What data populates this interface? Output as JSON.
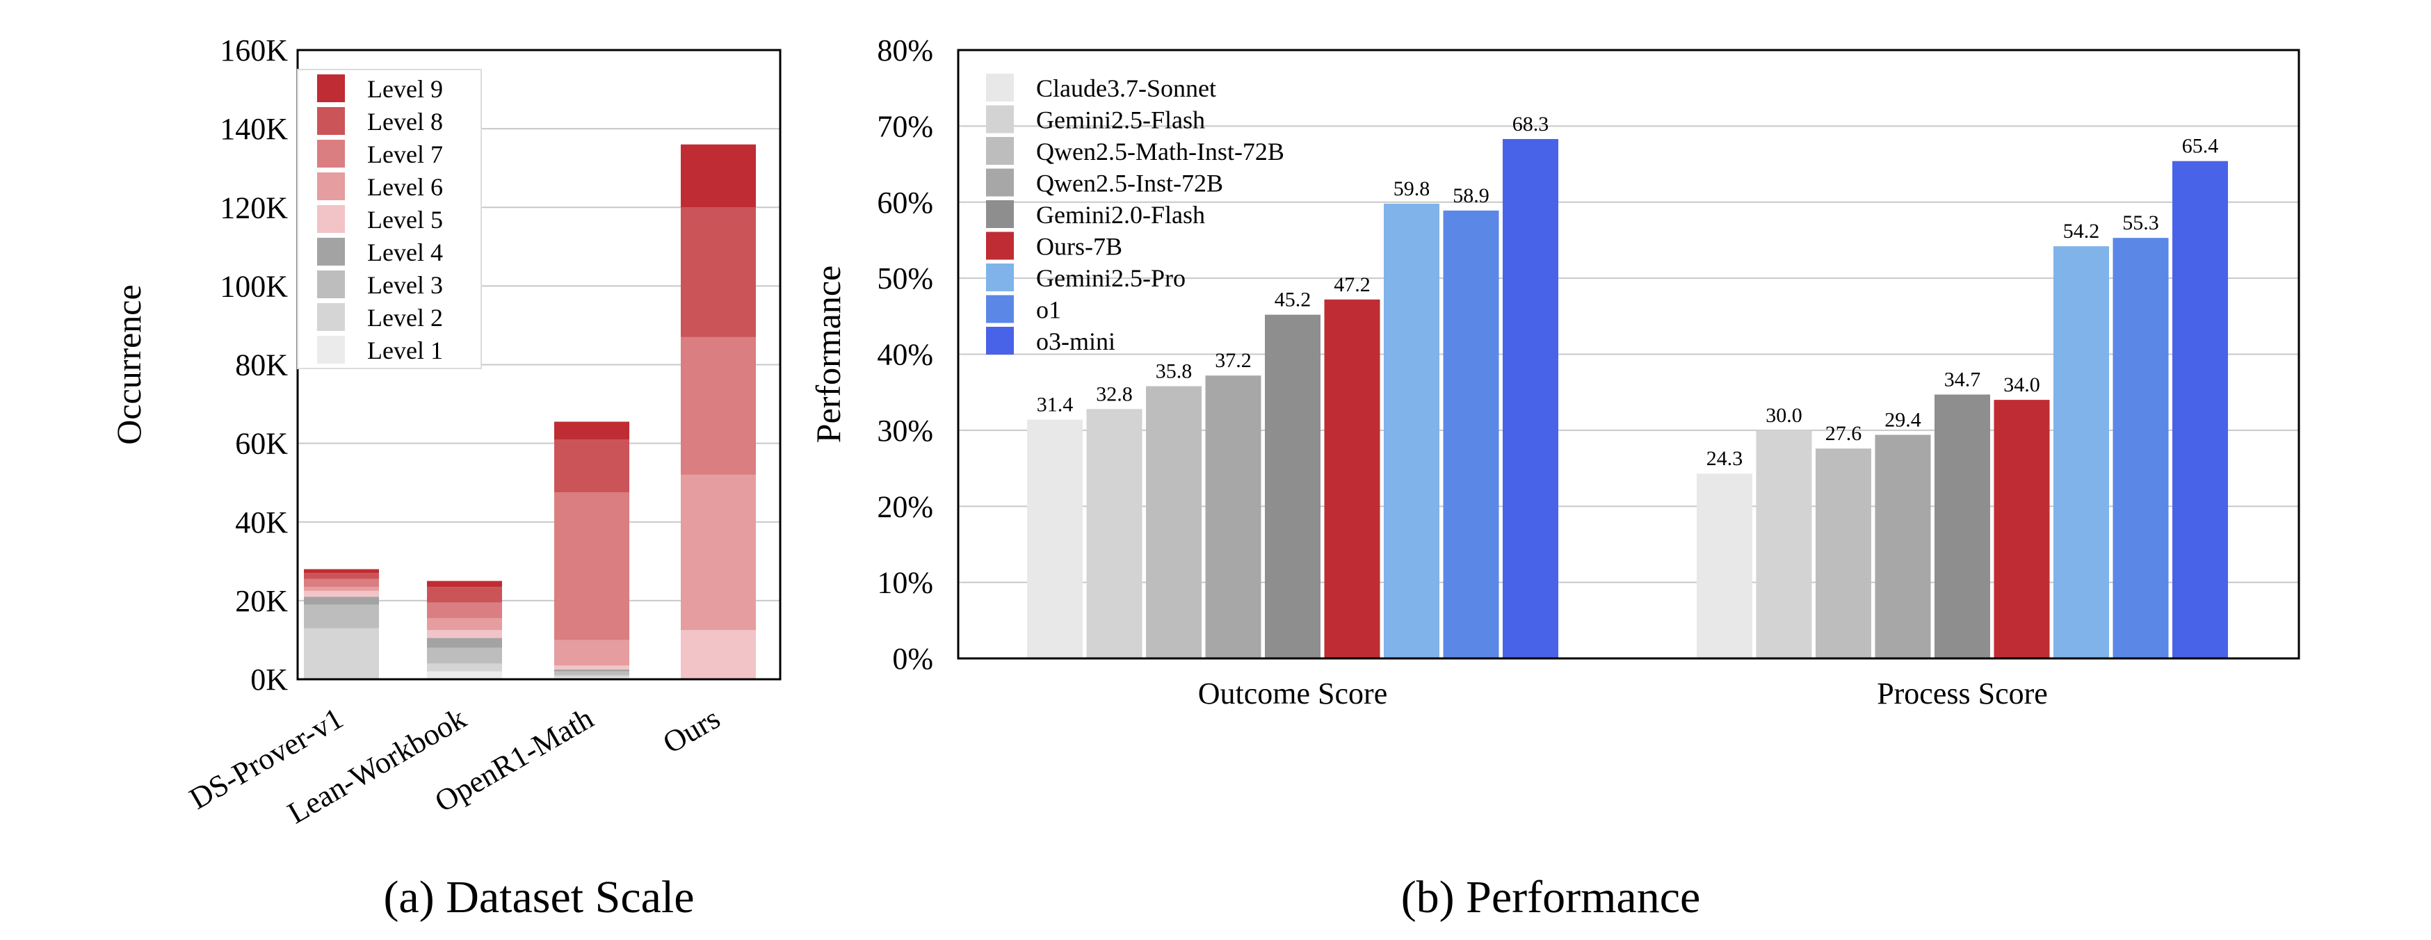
{
  "chart_data": [
    {
      "type": "bar",
      "stacked": true,
      "caption": "(a) Dataset Scale",
      "ylabel": "Occurrence",
      "ylim": [
        0,
        160000
      ],
      "yticks": [
        "0K",
        "20K",
        "40K",
        "60K",
        "80K",
        "100K",
        "120K",
        "140K",
        "160K"
      ],
      "grid": true,
      "legend_position": "top-left",
      "categories": [
        "DS-Prover-v1",
        "Lean-Workbook",
        "OpenR1-Math",
        "Ours"
      ],
      "series": [
        {
          "name": "Level 1",
          "color": "#ebebeb",
          "values": [
            0,
            2000,
            500,
            0
          ]
        },
        {
          "name": "Level 2",
          "color": "#d5d5d5",
          "values": [
            13000,
            2000,
            500,
            0
          ]
        },
        {
          "name": "Level 3",
          "color": "#bdbdbd",
          "values": [
            6000,
            4000,
            1000,
            0
          ]
        },
        {
          "name": "Level 4",
          "color": "#a3a3a3",
          "values": [
            2000,
            2500,
            500,
            0
          ]
        },
        {
          "name": "Level 5",
          "color": "#f2c4c7",
          "values": [
            1500,
            2000,
            1000,
            12500
          ]
        },
        {
          "name": "Level 6",
          "color": "#e59da0",
          "values": [
            1000,
            3000,
            6500,
            39500
          ]
        },
        {
          "name": "Level 7",
          "color": "#da7e81",
          "values": [
            2000,
            4000,
            37500,
            35000
          ]
        },
        {
          "name": "Level 8",
          "color": "#cb5459",
          "values": [
            1500,
            4000,
            13500,
            33000
          ]
        },
        {
          "name": "Level 9",
          "color": "#bf2c33",
          "values": [
            1000,
            1500,
            4500,
            16000
          ]
        }
      ]
    },
    {
      "type": "bar",
      "caption": "(b) Performance",
      "ylabel": "Performance",
      "ylim": [
        0,
        80
      ],
      "yticks": [
        "0%",
        "10%",
        "20%",
        "30%",
        "40%",
        "50%",
        "60%",
        "70%",
        "80%"
      ],
      "grid": true,
      "legend_position": "top-left",
      "categories": [
        "Outcome Score",
        "Process Score"
      ],
      "series": [
        {
          "name": "Claude3.7-Sonnet",
          "color": "#e8e8e8",
          "values": [
            31.4,
            24.3
          ],
          "labels": [
            "31.4",
            "24.3"
          ]
        },
        {
          "name": "Gemini2.5-Flash",
          "color": "#d3d3d3",
          "values": [
            32.8,
            30.0
          ],
          "labels": [
            "32.8",
            "30.0"
          ]
        },
        {
          "name": "Qwen2.5-Math-Inst-72B",
          "color": "#bdbdbd",
          "values": [
            35.8,
            27.6
          ],
          "labels": [
            "35.8",
            "27.6"
          ]
        },
        {
          "name": "Qwen2.5-Inst-72B",
          "color": "#a7a7a7",
          "values": [
            37.2,
            29.4
          ],
          "labels": [
            "37.2",
            "29.4"
          ]
        },
        {
          "name": "Gemini2.0-Flash",
          "color": "#8e8e8e",
          "values": [
            45.2,
            34.7
          ],
          "labels": [
            "45.2",
            "34.7"
          ]
        },
        {
          "name": "Ours-7B",
          "color": "#bf2c33",
          "values": [
            47.2,
            34.0
          ],
          "labels": [
            "47.2",
            "34.0"
          ]
        },
        {
          "name": "Gemini2.5-Pro",
          "color": "#80b3ea",
          "values": [
            59.8,
            54.2
          ],
          "labels": [
            "59.8",
            "54.2"
          ]
        },
        {
          "name": "o1",
          "color": "#5b88e6",
          "values": [
            58.9,
            55.3
          ],
          "labels": [
            "58.9",
            "55.3"
          ]
        },
        {
          "name": "o3-mini",
          "color": "#4963e8",
          "values": [
            68.3,
            65.4
          ],
          "labels": [
            "68.3",
            "65.4"
          ]
        }
      ]
    }
  ]
}
